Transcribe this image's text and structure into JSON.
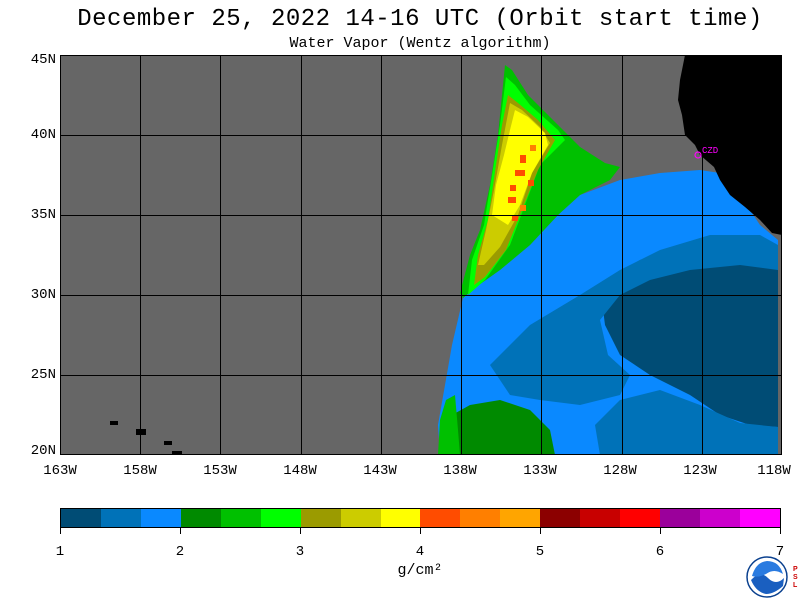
{
  "title": "December 25, 2022  14-16 UTC  (Orbit start time)",
  "subtitle": "Water Vapor (Wentz algorithm)",
  "station_label": "CZD",
  "lat_labels": [
    "45N",
    "40N",
    "35N",
    "30N",
    "25N",
    "20N"
  ],
  "lon_labels": [
    "163W",
    "158W",
    "153W",
    "148W",
    "143W",
    "138W",
    "133W",
    "128W",
    "123W",
    "118W"
  ],
  "map": {
    "lat_range": [
      20,
      45
    ],
    "lon_range": [
      -163,
      -118
    ],
    "grid_lats": [
      20,
      25,
      30,
      35,
      40,
      45
    ],
    "grid_lons": [
      -163,
      -158,
      -153,
      -148,
      -143,
      -138,
      -133,
      -128,
      -123,
      -118
    ],
    "station_lat": 38.6,
    "station_lon": -123.2,
    "colors": {
      "no_data": "#666666",
      "land": "#000000",
      "grid": "#000000",
      "station": "#ff00ff"
    }
  },
  "colorbar": {
    "colors": [
      "#004c75",
      "#0072b8",
      "#0a89ff",
      "#008a00",
      "#00c000",
      "#00ff00",
      "#9b9b00",
      "#cccc00",
      "#ffff00",
      "#ff4c00",
      "#ff7f00",
      "#ffa500",
      "#8c0000",
      "#c80000",
      "#ff0000",
      "#9b009b",
      "#cc00cc",
      "#ff00ff"
    ],
    "tick_labels": [
      "1",
      "2",
      "3",
      "4",
      "5",
      "6",
      "7"
    ],
    "unit": "g/cm²"
  }
}
